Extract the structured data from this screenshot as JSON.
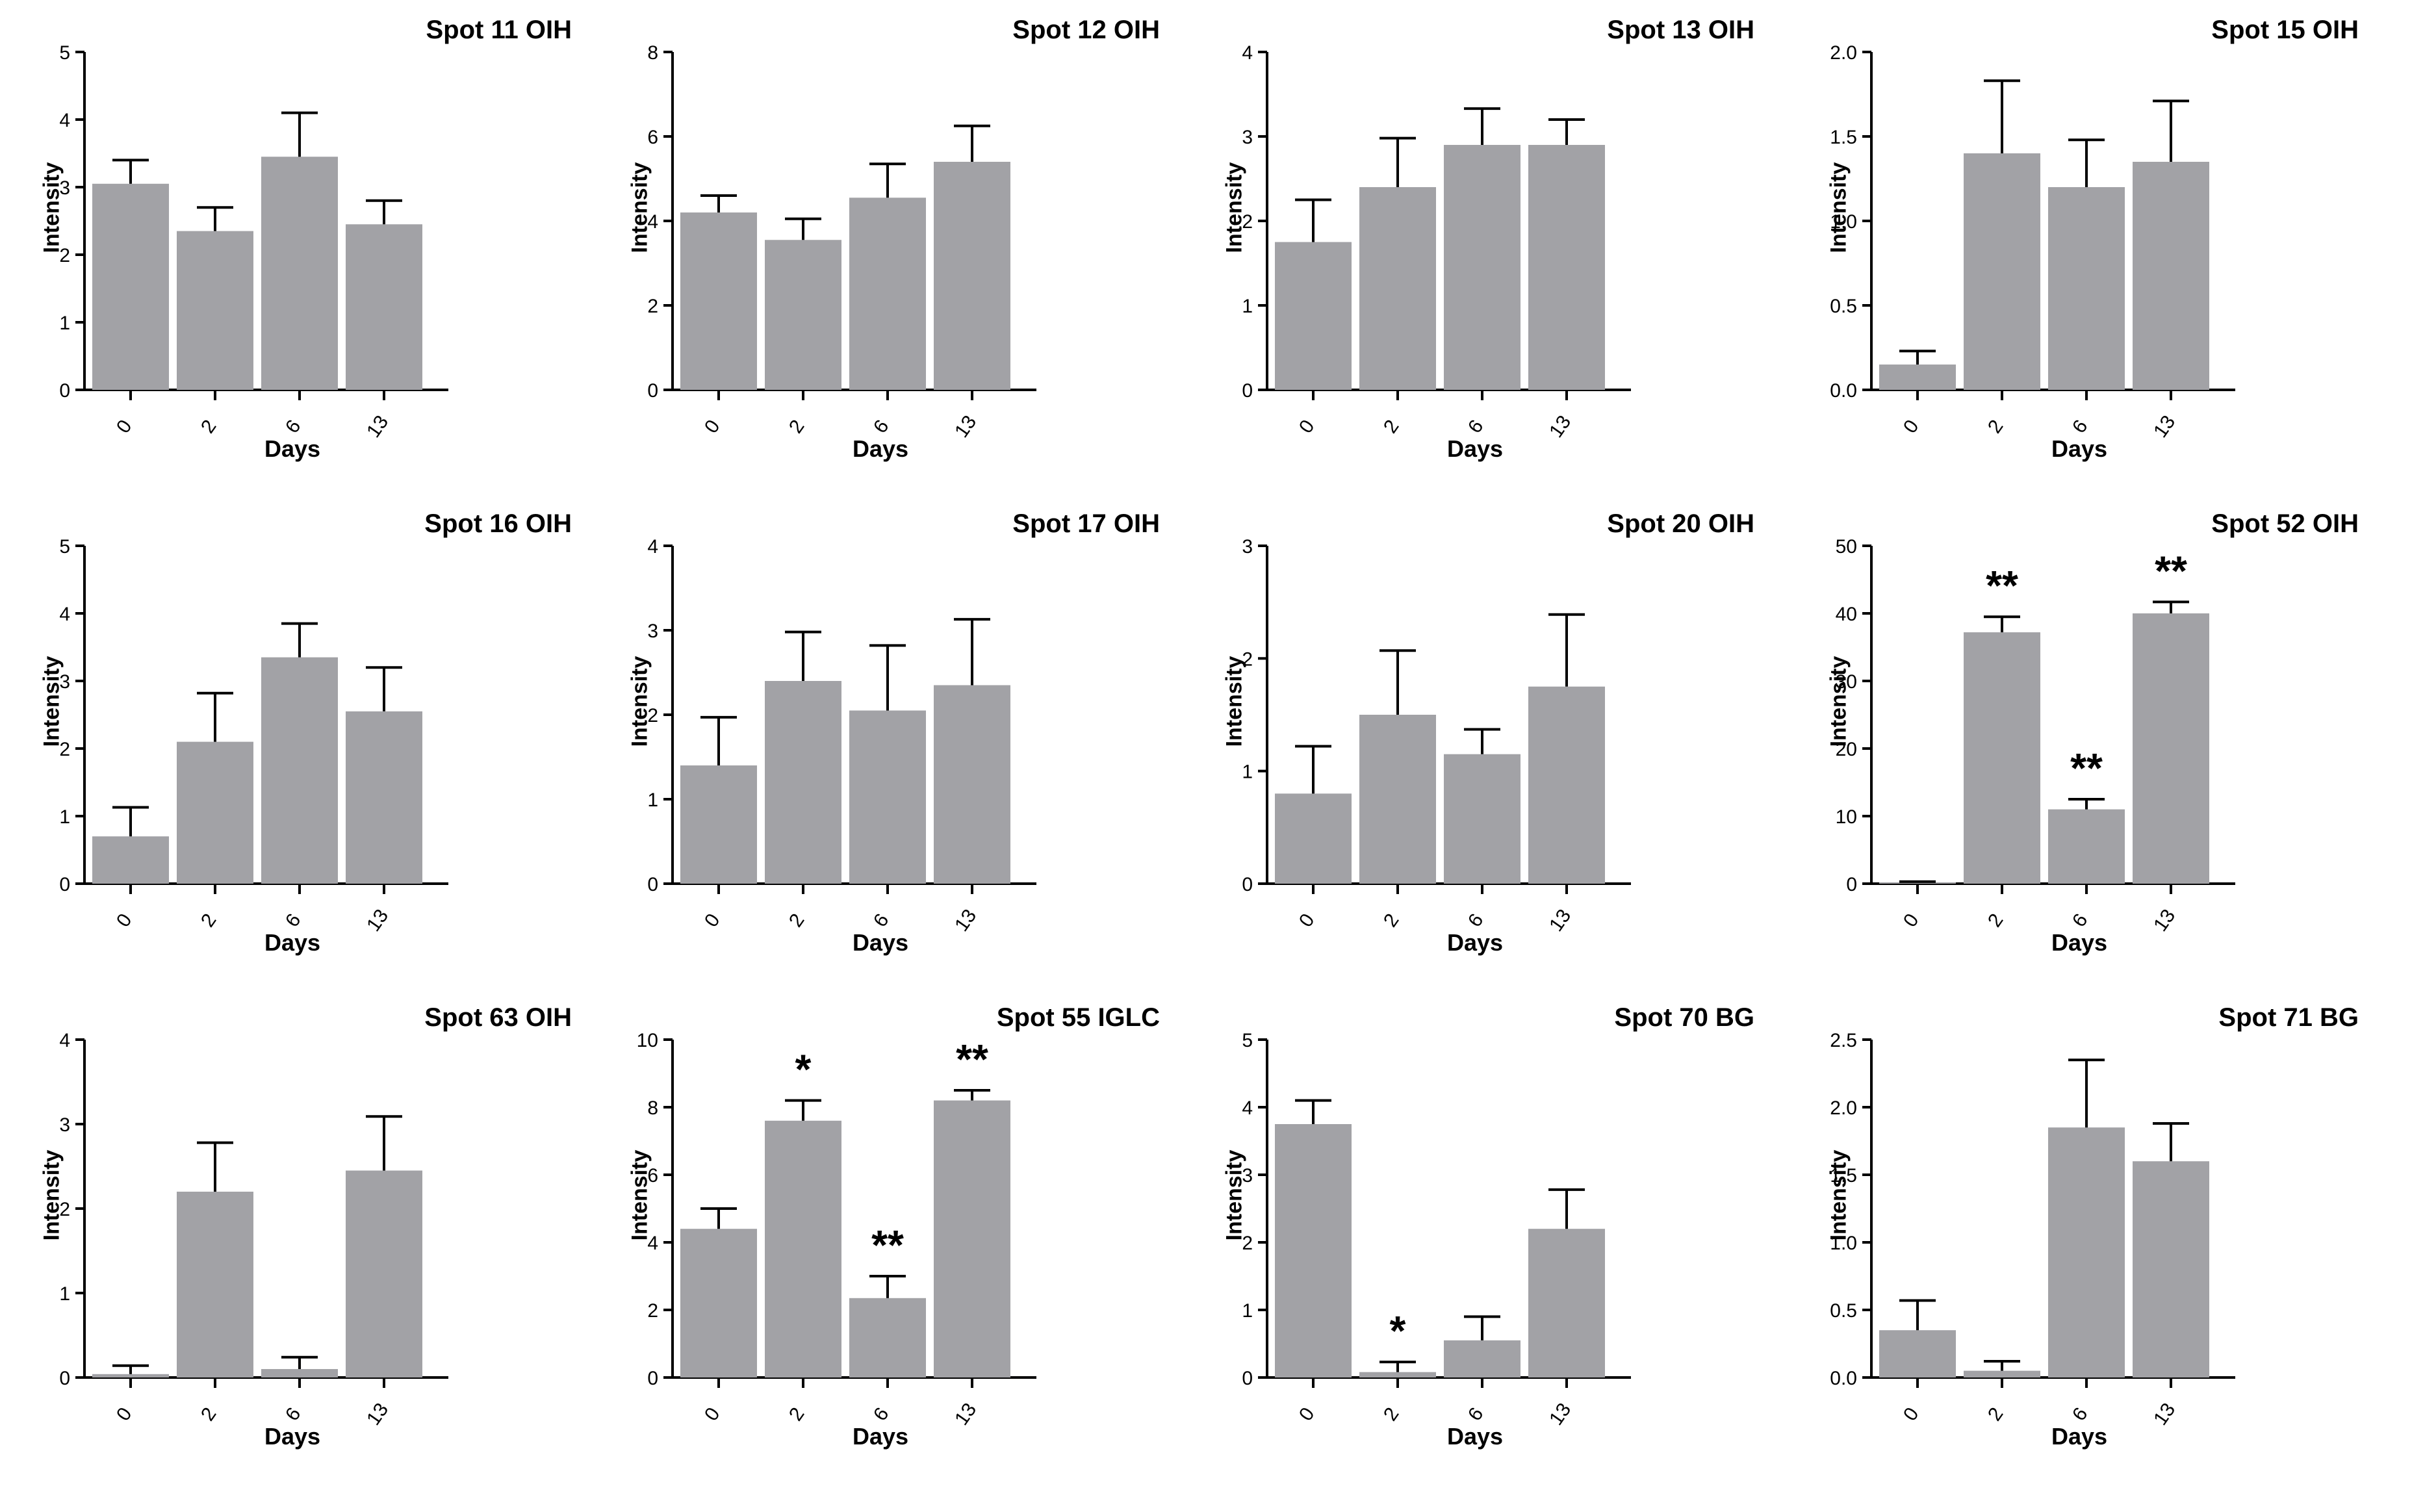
{
  "style": {
    "bar_color": "#a2a2a6",
    "axis_color": "#000000"
  },
  "chart_data": [
    {
      "type": "bar",
      "title": "Spot 11 OIH",
      "xlabel": "Days",
      "ylabel": "Intensity",
      "categories": [
        "0",
        "2",
        "6",
        "13"
      ],
      "values": [
        3.05,
        2.35,
        3.45,
        2.45
      ],
      "errors": [
        0.35,
        0.35,
        0.65,
        0.35
      ],
      "ylim": [
        0,
        5
      ],
      "yticks": [
        "0",
        "1",
        "2",
        "3",
        "4",
        "5"
      ],
      "yticks_values": [
        0,
        1,
        2,
        3,
        4,
        5
      ],
      "annotations": [
        "",
        "",
        "",
        ""
      ]
    },
    {
      "type": "bar",
      "title": "Spot 12 OIH",
      "xlabel": "Days",
      "ylabel": "Intensity",
      "categories": [
        "0",
        "2",
        "6",
        "13"
      ],
      "values": [
        4.2,
        3.55,
        4.55,
        5.4
      ],
      "errors": [
        0.4,
        0.5,
        0.8,
        0.85
      ],
      "ylim": [
        0,
        8
      ],
      "yticks": [
        "0",
        "2",
        "4",
        "6",
        "8"
      ],
      "yticks_values": [
        0,
        2,
        4,
        6,
        8
      ],
      "annotations": [
        "",
        "",
        "",
        ""
      ]
    },
    {
      "type": "bar",
      "title": "Spot 13 OIH",
      "xlabel": "Days",
      "ylabel": "Intensity",
      "categories": [
        "0",
        "2",
        "6",
        "13"
      ],
      "values": [
        1.75,
        2.4,
        2.9,
        2.9
      ],
      "errors": [
        0.5,
        0.58,
        0.43,
        0.3
      ],
      "ylim": [
        0,
        4
      ],
      "yticks": [
        "0",
        "1",
        "2",
        "3",
        "4"
      ],
      "yticks_values": [
        0,
        1,
        2,
        3,
        4
      ],
      "annotations": [
        "",
        "",
        "",
        ""
      ]
    },
    {
      "type": "bar",
      "title": "Spot 15 OIH",
      "xlabel": "Days",
      "ylabel": "Intensity",
      "categories": [
        "0",
        "2",
        "6",
        "13"
      ],
      "values": [
        0.15,
        1.4,
        1.2,
        1.35
      ],
      "errors": [
        0.08,
        0.43,
        0.28,
        0.36
      ],
      "ylim": [
        0,
        2
      ],
      "yticks": [
        "0.0",
        "0.5",
        "1.0",
        "1.5",
        "2.0"
      ],
      "yticks_values": [
        0,
        0.5,
        1,
        1.5,
        2
      ],
      "annotations": [
        "",
        "",
        "",
        ""
      ]
    },
    {
      "type": "bar",
      "title": "Spot 16 OIH",
      "xlabel": "Days",
      "ylabel": "Intensity",
      "categories": [
        "0",
        "2",
        "6",
        "13"
      ],
      "values": [
        0.7,
        2.1,
        3.35,
        2.55
      ],
      "errors": [
        0.43,
        0.72,
        0.5,
        0.65
      ],
      "ylim": [
        0,
        5
      ],
      "yticks": [
        "0",
        "1",
        "2",
        "3",
        "4",
        "5"
      ],
      "yticks_values": [
        0,
        1,
        2,
        3,
        4,
        5
      ],
      "annotations": [
        "",
        "",
        "",
        ""
      ]
    },
    {
      "type": "bar",
      "title": "Spot 17 OIH",
      "xlabel": "Days",
      "ylabel": "Intensity",
      "categories": [
        "0",
        "2",
        "6",
        "13"
      ],
      "values": [
        1.4,
        2.4,
        2.05,
        2.35
      ],
      "errors": [
        0.57,
        0.58,
        0.77,
        0.78
      ],
      "ylim": [
        0,
        4
      ],
      "yticks": [
        "0",
        "1",
        "2",
        "3",
        "4"
      ],
      "yticks_values": [
        0,
        1,
        2,
        3,
        4
      ],
      "annotations": [
        "",
        "",
        "",
        ""
      ]
    },
    {
      "type": "bar",
      "title": "Spot 20 OIH",
      "xlabel": "Days",
      "ylabel": "Intensity",
      "categories": [
        "0",
        "2",
        "6",
        "13"
      ],
      "values": [
        0.8,
        1.5,
        1.15,
        1.75
      ],
      "errors": [
        0.42,
        0.57,
        0.22,
        0.64
      ],
      "ylim": [
        0,
        3
      ],
      "yticks": [
        "0",
        "1",
        "2",
        "3"
      ],
      "yticks_values": [
        0,
        1,
        2,
        3
      ],
      "annotations": [
        "",
        "",
        "",
        ""
      ]
    },
    {
      "type": "bar",
      "title": "Spot 52 OIH",
      "xlabel": "Days",
      "ylabel": "Intensity",
      "categories": [
        "0",
        "2",
        "6",
        "13"
      ],
      "values": [
        0.2,
        37.2,
        11.0,
        40.0
      ],
      "errors": [
        0.1,
        2.3,
        1.5,
        1.7
      ],
      "ylim": [
        0,
        50
      ],
      "yticks": [
        "0",
        "10",
        "20",
        "30",
        "40",
        "50"
      ],
      "yticks_values": [
        0,
        10,
        20,
        30,
        40,
        50
      ],
      "annotations": [
        "",
        "**",
        "**",
        "**"
      ]
    },
    {
      "type": "bar",
      "title": "Spot 63 OIH",
      "xlabel": "Days",
      "ylabel": "Intensity",
      "categories": [
        "0",
        "2",
        "6",
        "13"
      ],
      "values": [
        0.04,
        2.2,
        0.1,
        2.45
      ],
      "errors": [
        0.1,
        0.58,
        0.14,
        0.64
      ],
      "ylim": [
        0,
        4
      ],
      "yticks": [
        "0",
        "1",
        "2",
        "3",
        "4"
      ],
      "yticks_values": [
        0,
        1,
        2,
        3,
        4
      ],
      "annotations": [
        "",
        "",
        "",
        ""
      ]
    },
    {
      "type": "bar",
      "title": "Spot 55 IGLC",
      "xlabel": "Days",
      "ylabel": "Intensity",
      "categories": [
        "0",
        "2",
        "6",
        "13"
      ],
      "values": [
        4.4,
        7.6,
        2.35,
        8.2
      ],
      "errors": [
        0.6,
        0.6,
        0.65,
        0.3
      ],
      "ylim": [
        0,
        10
      ],
      "yticks": [
        "0",
        "2",
        "4",
        "6",
        "8",
        "10"
      ],
      "yticks_values": [
        0,
        2,
        4,
        6,
        8,
        10
      ],
      "annotations": [
        "",
        "*",
        "**",
        "**"
      ]
    },
    {
      "type": "bar",
      "title": "Spot 70 BG",
      "xlabel": "Days",
      "ylabel": "Intensity",
      "categories": [
        "0",
        "2",
        "6",
        "13"
      ],
      "values": [
        3.75,
        0.08,
        0.55,
        2.2
      ],
      "errors": [
        0.35,
        0.15,
        0.35,
        0.58
      ],
      "ylim": [
        0,
        5
      ],
      "yticks": [
        "0",
        "1",
        "2",
        "3",
        "4",
        "5"
      ],
      "yticks_values": [
        0,
        1,
        2,
        3,
        4,
        5
      ],
      "annotations": [
        "",
        "*",
        "",
        ""
      ]
    },
    {
      "type": "bar",
      "title": "Spot 71 BG",
      "xlabel": "Days",
      "ylabel": "Intensity",
      "categories": [
        "0",
        "2",
        "6",
        "13"
      ],
      "values": [
        0.35,
        0.05,
        1.85,
        1.6
      ],
      "errors": [
        0.22,
        0.07,
        0.5,
        0.28
      ],
      "ylim": [
        0,
        2.5
      ],
      "yticks": [
        "0.0",
        "0.5",
        "1.0",
        "1.5",
        "2.0",
        "2.5"
      ],
      "yticks_values": [
        0,
        0.5,
        1,
        1.5,
        2,
        2.5
      ],
      "annotations": [
        "",
        "",
        "",
        ""
      ]
    }
  ]
}
